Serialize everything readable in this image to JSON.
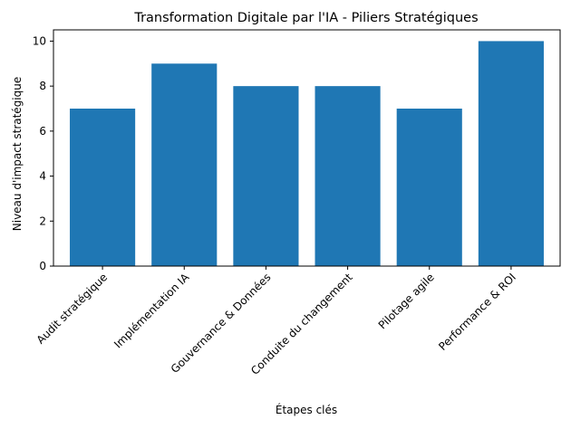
{
  "chart_data": {
    "type": "bar",
    "title": "Transformation Digitale par l'IA - Piliers Stratégiques",
    "xlabel": "Étapes clés",
    "ylabel": "Niveau d'impact stratégique",
    "categories": [
      "Audit stratégique",
      "Implémentation IA",
      "Gouvernance & Données",
      "Conduite du changement",
      "Pilotage agile",
      "Performance & ROI"
    ],
    "values": [
      7,
      9,
      8,
      8,
      7,
      10
    ],
    "ylim": [
      0,
      10.5
    ],
    "yticks": [
      0,
      2,
      4,
      6,
      8,
      10
    ],
    "grid": false,
    "bar_color": "#1f77b4"
  }
}
